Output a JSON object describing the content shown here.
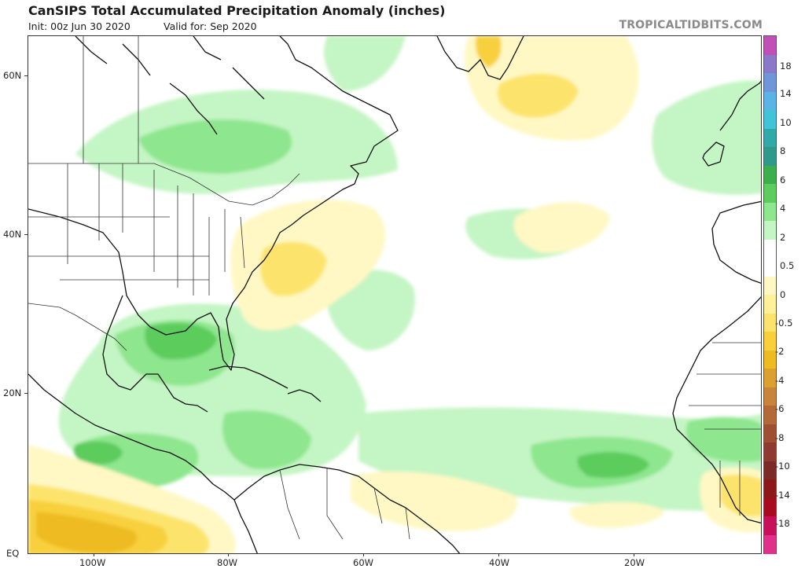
{
  "header": {
    "title": "CanSIPS Total Accumulated Precipitation Anomaly (inches)",
    "init": "Init: 00z Jun 30 2020",
    "valid": "Valid for: Sep 2020",
    "brand": "TROPICALTIDBITS.COM"
  },
  "axes": {
    "lat_labels": [
      "60N",
      "40N",
      "20N",
      "EQ"
    ],
    "lon_labels": [
      "100W",
      "80W",
      "60W",
      "40W",
      "20W"
    ]
  },
  "colorbar": {
    "labels": [
      "18",
      "14",
      "10",
      "8",
      "6",
      "4",
      "2",
      "0.5",
      "0",
      "-0.5",
      "-2",
      "-4",
      "-6",
      "-8",
      "-10",
      "-14",
      "-18"
    ],
    "colors": [
      "#c050b8",
      "#8c78c8",
      "#6f96d8",
      "#5bb4e6",
      "#41c4d8",
      "#30aaa8",
      "#2f9a8a",
      "#3cae4c",
      "#5ccc5c",
      "#8ee68e",
      "#c4f5c4",
      "#ffffff",
      "#ffffff",
      "#fff8c4",
      "#fff09a",
      "#fce46c",
      "#f8d03c",
      "#eebc20",
      "#dca030",
      "#c8843a",
      "#b46a38",
      "#a05032",
      "#8e3a2e",
      "#7c2a28",
      "#8c1818",
      "#a80a1e",
      "#c8105a",
      "#e0308a"
    ]
  }
}
